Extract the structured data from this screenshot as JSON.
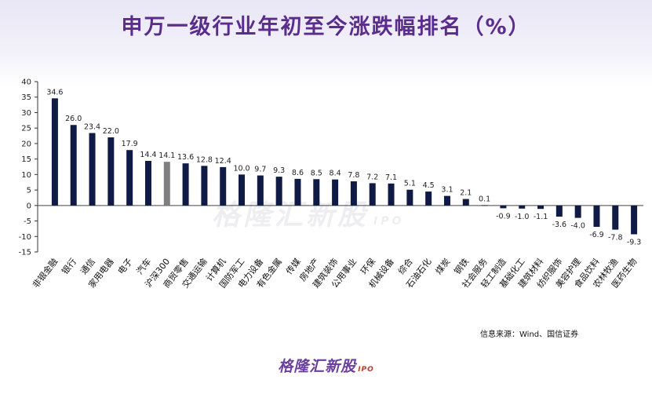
{
  "title": "申万一级行业年初至今涨跌幅排名（%）",
  "source": "信息来源：Wind、国信证券",
  "brand": {
    "name": "格隆汇新股",
    "tag": "IPO"
  },
  "watermark": {
    "name": "格隆汇新股",
    "tag": "IPO"
  },
  "colors": {
    "bar": "#0f1b45",
    "highlight": "#7f7f7f",
    "title": "#5a2d8c"
  },
  "chart_data": {
    "type": "bar",
    "title": "申万一级行业年初至今涨跌幅排名（%）",
    "ylim": [
      -15,
      40
    ],
    "yticks": [
      -15,
      -10,
      -5,
      0,
      5,
      10,
      15,
      20,
      25,
      30,
      35,
      40
    ],
    "highlight_category": "沪深300",
    "categories": [
      "非银金融",
      "银行",
      "通信",
      "家用电器",
      "电子",
      "汽车",
      "沪深300",
      "商贸零售",
      "交通运输",
      "计算机",
      "国防军工",
      "电力设备",
      "有色金属",
      "传媒",
      "房地产",
      "建筑装饰",
      "公用事业",
      "环保",
      "机械设备",
      "综合",
      "石油石化",
      "煤炭",
      "钢铁",
      "社会服务",
      "轻工制造",
      "基础化工",
      "建筑材料",
      "纺织服饰",
      "美容护理",
      "食品饮料",
      "农林牧渔",
      "医药生物"
    ],
    "values": [
      34.6,
      26.0,
      23.4,
      22.0,
      17.9,
      14.4,
      14.1,
      13.6,
      12.8,
      12.4,
      10.0,
      9.7,
      9.3,
      8.6,
      8.5,
      8.4,
      7.8,
      7.2,
      7.1,
      5.1,
      4.5,
      3.1,
      2.1,
      0.1,
      -0.9,
      -1.0,
      -1.1,
      -3.6,
      -4.0,
      -6.9,
      -7.8,
      -9.3
    ],
    "labels": [
      "34.6",
      "26.0",
      "23.4",
      "22.0",
      "17.9",
      "14.4",
      "14.1",
      "13.6",
      "12.8",
      "12.4",
      "10.0",
      "9.7",
      "9.3",
      "8.6",
      "8.5",
      "8.4",
      "7.8",
      "7.2",
      "7.1",
      "5.1",
      "4.5",
      "3.1",
      "2.1",
      "0.1",
      "-0.9",
      "-1.0",
      "-1.1",
      "-3.6",
      "-4.0",
      "-6.9",
      "-7.8",
      "-9.3"
    ]
  }
}
